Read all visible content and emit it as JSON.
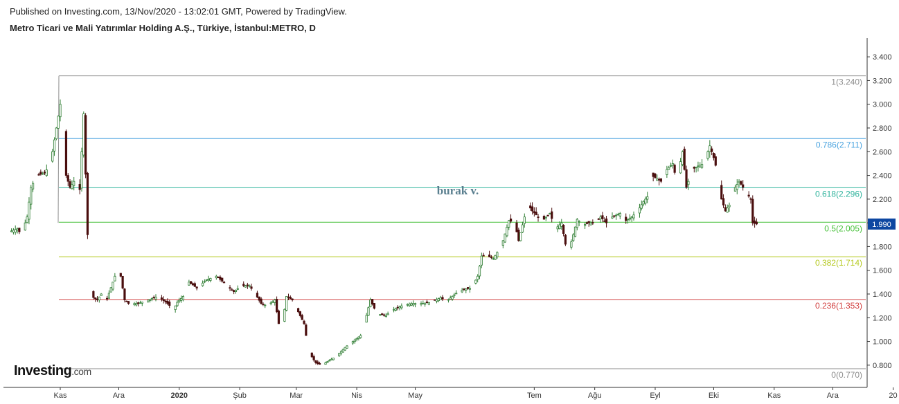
{
  "header": {
    "published": "Published on Investing.com, 13/Nov/2020 - 13:02:01 GMT, Powered by TradingView.",
    "symbol": "Metro Ticari ve Mali Yatırımlar Holding A.Ş., Türkiye, İstanbul:METRO, D"
  },
  "logo": {
    "name": "Investing",
    "suffix": ".com"
  },
  "chart_data": {
    "type": "candlestick",
    "ylim": [
      0.7,
      3.5
    ],
    "y_ticks": [
      "3.400",
      "3.200",
      "3.000",
      "2.800",
      "2.600",
      "2.400",
      "2.200",
      "2.000",
      "1.800",
      "1.600",
      "1.400",
      "1.200",
      "1.000",
      "0.800"
    ],
    "x_ticks": [
      "Kas",
      "Ara",
      "2020",
      "Şub",
      "Mar",
      "Nis",
      "May",
      "Tem",
      "Ağu",
      "Eyl",
      "Eki",
      "Kas",
      "Ara",
      "20"
    ],
    "x_tick_day": [
      0,
      30,
      61,
      92,
      121,
      152,
      182,
      243,
      274,
      305,
      335,
      366,
      396,
      427
    ],
    "last_price": "1.990",
    "colors": {
      "up": "#2e7d32",
      "down": "#4a0e0e",
      "last_price_bg": "#0d47a1"
    },
    "fibonacci": [
      {
        "label": "1(3.240)",
        "value": 3.24,
        "color": "#8c8c8c"
      },
      {
        "label": "0.786(2.711)",
        "value": 2.711,
        "color": "#4aa3df"
      },
      {
        "label": "0.618(2.296)",
        "value": 2.296,
        "color": "#2fb39c"
      },
      {
        "label": "0.5(2.005)",
        "value": 2.005,
        "color": "#47c13a"
      },
      {
        "label": "0.382(1.714)",
        "value": 1.714,
        "color": "#b5c91f"
      },
      {
        "label": "0.236(1.353)",
        "value": 1.353,
        "color": "#d24040"
      },
      {
        "label": "0(0.770)",
        "value": 0.77,
        "color": "#8c8c8c"
      }
    ],
    "annotation": "burak v.",
    "close": [
      [
        -27,
        1.92
      ],
      [
        -22,
        1.95
      ],
      [
        -20,
        1.9
      ],
      [
        -17,
        2.05
      ],
      [
        -15,
        2.3
      ],
      [
        -12,
        2.4
      ],
      [
        -8,
        2.42
      ],
      [
        -5,
        2.5
      ],
      [
        -2,
        2.8
      ],
      [
        0,
        3.0
      ],
      [
        1,
        3.1
      ],
      [
        3,
        2.4
      ],
      [
        5,
        2.3
      ],
      [
        7,
        2.35
      ],
      [
        10,
        2.28
      ],
      [
        12,
        2.92
      ],
      [
        14,
        1.9
      ],
      [
        15,
        1.5
      ],
      [
        17,
        1.37
      ],
      [
        19,
        1.35
      ],
      [
        21,
        1.4
      ],
      [
        24,
        1.36
      ],
      [
        27,
        1.5
      ],
      [
        29,
        1.6
      ],
      [
        31,
        1.55
      ],
      [
        33,
        1.35
      ],
      [
        35,
        1.32
      ],
      [
        40,
        1.32
      ],
      [
        45,
        1.35
      ],
      [
        50,
        1.38
      ],
      [
        55,
        1.32
      ],
      [
        58,
        1.27
      ],
      [
        60,
        1.33
      ],
      [
        63,
        1.38
      ],
      [
        66,
        1.5
      ],
      [
        70,
        1.45
      ],
      [
        75,
        1.52
      ],
      [
        80,
        1.55
      ],
      [
        85,
        1.48
      ],
      [
        89,
        1.42
      ],
      [
        93,
        1.47
      ],
      [
        97,
        1.47
      ],
      [
        100,
        1.4
      ],
      [
        103,
        1.32
      ],
      [
        106,
        1.3
      ],
      [
        110,
        1.35
      ],
      [
        113,
        1.05
      ],
      [
        116,
        1.38
      ],
      [
        119,
        1.35
      ],
      [
        122,
        1.25
      ],
      [
        125,
        1.15
      ],
      [
        127,
        0.95
      ],
      [
        129,
        0.87
      ],
      [
        131,
        0.82
      ],
      [
        134,
        0.8
      ],
      [
        137,
        0.83
      ],
      [
        140,
        0.86
      ],
      [
        143,
        0.9
      ],
      [
        146,
        0.95
      ],
      [
        150,
        1.0
      ],
      [
        154,
        1.05
      ],
      [
        157,
        1.22
      ],
      [
        159,
        1.35
      ],
      [
        161,
        1.28
      ],
      [
        163,
        1.23
      ],
      [
        167,
        1.22
      ],
      [
        171,
        1.27
      ],
      [
        175,
        1.3
      ],
      [
        180,
        1.32
      ],
      [
        185,
        1.32
      ],
      [
        190,
        1.33
      ],
      [
        195,
        1.37
      ],
      [
        198,
        1.34
      ],
      [
        201,
        1.38
      ],
      [
        204,
        1.42
      ],
      [
        207,
        1.44
      ],
      [
        211,
        1.45
      ],
      [
        214,
        1.55
      ],
      [
        216,
        1.72
      ],
      [
        219,
        1.72
      ],
      [
        222,
        1.7
      ],
      [
        224,
        1.75
      ],
      [
        227,
        1.85
      ],
      [
        230,
        2.02
      ],
      [
        233,
        2.0
      ],
      [
        235,
        1.85
      ],
      [
        238,
        2.05
      ],
      [
        240,
        2.15
      ],
      [
        242,
        2.1
      ],
      [
        245,
        2.05
      ],
      [
        248,
        2.03
      ],
      [
        251,
        2.08
      ],
      [
        254,
        1.95
      ],
      [
        257,
        2.0
      ],
      [
        259,
        1.82
      ],
      [
        261,
        1.78
      ],
      [
        263,
        1.9
      ],
      [
        265,
        2.03
      ],
      [
        268,
        1.98
      ],
      [
        271,
        2.0
      ],
      [
        274,
        2.0
      ],
      [
        277,
        2.05
      ],
      [
        280,
        2.0
      ],
      [
        283,
        2.05
      ],
      [
        287,
        2.08
      ],
      [
        290,
        2.02
      ],
      [
        293,
        2.05
      ],
      [
        296,
        2.1
      ],
      [
        299,
        2.18
      ],
      [
        301,
        2.22
      ],
      [
        303,
        2.4
      ],
      [
        305,
        2.38
      ],
      [
        308,
        2.35
      ],
      [
        311,
        2.45
      ],
      [
        314,
        2.5
      ],
      [
        316,
        2.35
      ],
      [
        319,
        2.6
      ],
      [
        321,
        2.3
      ],
      [
        324,
        2.45
      ],
      [
        327,
        2.48
      ],
      [
        330,
        2.5
      ],
      [
        333,
        2.65
      ],
      [
        335,
        2.55
      ],
      [
        337,
        2.42
      ],
      [
        339,
        2.2
      ],
      [
        341,
        2.1
      ],
      [
        343,
        2.15
      ],
      [
        346,
        2.3
      ],
      [
        348,
        2.35
      ],
      [
        350,
        2.3
      ],
      [
        352,
        2.25
      ],
      [
        354,
        2.2
      ],
      [
        355,
        2.0
      ],
      [
        357,
        1.99
      ]
    ]
  }
}
